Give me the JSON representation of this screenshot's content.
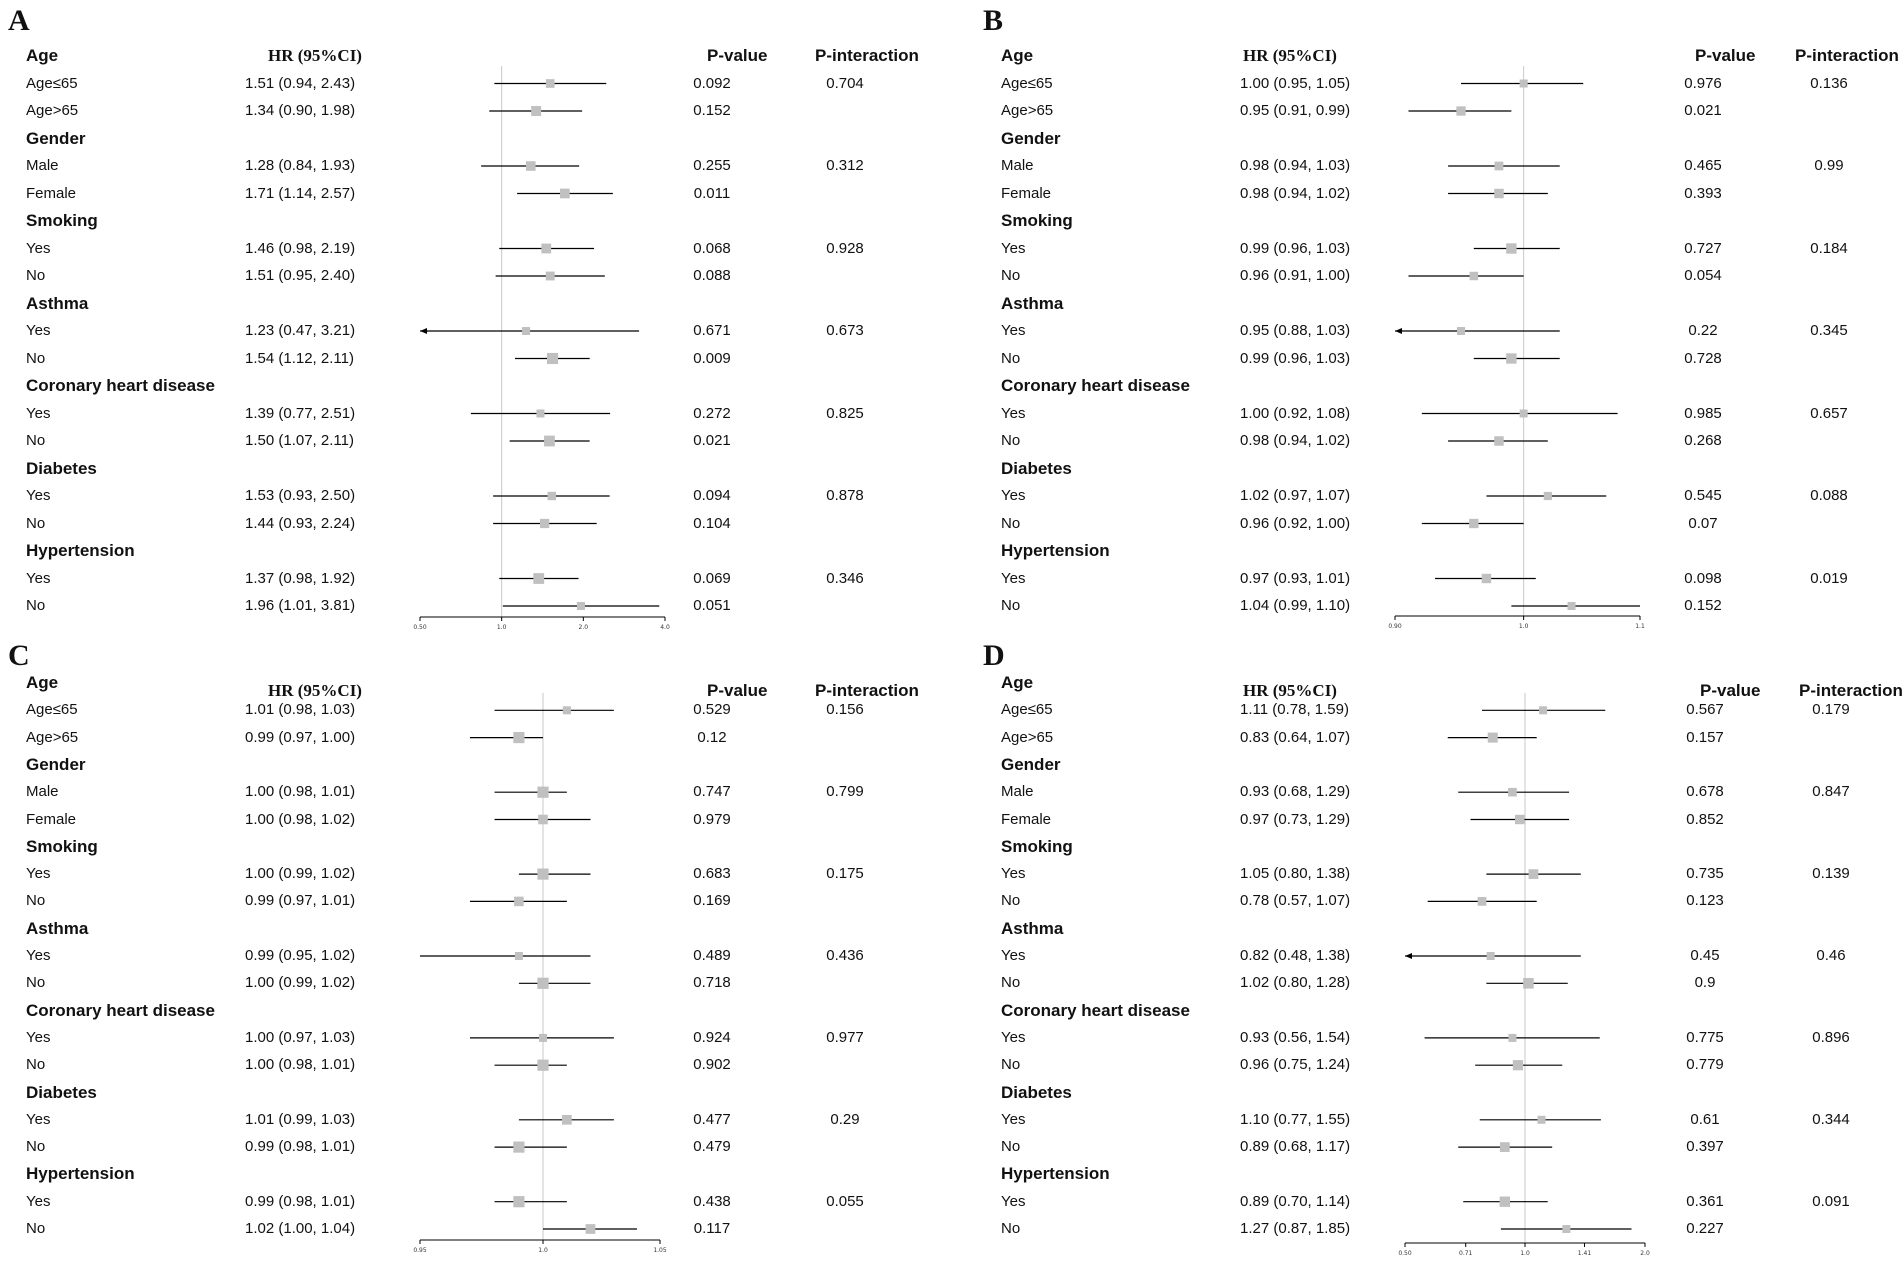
{
  "colors": {
    "marker": "#c0c0c0",
    "line": "#000000",
    "refline": "#c8c8c8"
  },
  "headers": {
    "hr": "HR (95%CI)",
    "p_value": "P-value",
    "p_interaction": "P-interaction"
  },
  "chart_data": [
    {
      "type": "forest",
      "panel": "A",
      "label": "A",
      "axis": {
        "scale": "log",
        "ticks": [
          0.5,
          1.0,
          2.0,
          4.0
        ],
        "tick_labels": [
          "0.50",
          "1.0",
          "2.0",
          "4.0"
        ],
        "reference": 1.0
      },
      "groups": [
        {
          "name": "Age",
          "rows": [
            {
              "label": "Age≤65",
              "hr_text": "1.51 (0.94, 2.43)",
              "hr": 1.51,
              "lo": 0.94,
              "hi": 2.43,
              "p": "0.092",
              "p_int": "0.704"
            },
            {
              "label": "Age>65",
              "hr_text": "1.34 (0.90, 1.98)",
              "hr": 1.34,
              "lo": 0.9,
              "hi": 1.98,
              "p": "0.152",
              "p_int": ""
            }
          ]
        },
        {
          "name": "Gender",
          "rows": [
            {
              "label": "Male",
              "hr_text": "1.28 (0.84, 1.93)",
              "hr": 1.28,
              "lo": 0.84,
              "hi": 1.93,
              "p": "0.255",
              "p_int": "0.312"
            },
            {
              "label": "Female",
              "hr_text": "1.71 (1.14, 2.57)",
              "hr": 1.71,
              "lo": 1.14,
              "hi": 2.57,
              "p": "0.011",
              "p_int": ""
            }
          ]
        },
        {
          "name": "Smoking",
          "rows": [
            {
              "label": "Yes",
              "hr_text": "1.46 (0.98, 2.19)",
              "hr": 1.46,
              "lo": 0.98,
              "hi": 2.19,
              "p": "0.068",
              "p_int": "0.928"
            },
            {
              "label": "No",
              "hr_text": "1.51 (0.95, 2.40)",
              "hr": 1.51,
              "lo": 0.95,
              "hi": 2.4,
              "p": "0.088",
              "p_int": ""
            }
          ]
        },
        {
          "name": "Asthma",
          "rows": [
            {
              "label": "Yes",
              "hr_text": "1.23 (0.47, 3.21)",
              "hr": 1.23,
              "lo": 0.47,
              "hi": 3.21,
              "p": "0.671",
              "p_int": "0.673"
            },
            {
              "label": "No",
              "hr_text": "1.54 (1.12, 2.11)",
              "hr": 1.54,
              "lo": 1.12,
              "hi": 2.11,
              "p": "0.009",
              "p_int": ""
            }
          ]
        },
        {
          "name": "Coronary heart disease",
          "rows": [
            {
              "label": "Yes",
              "hr_text": "1.39 (0.77, 2.51)",
              "hr": 1.39,
              "lo": 0.77,
              "hi": 2.51,
              "p": "0.272",
              "p_int": "0.825"
            },
            {
              "label": "No",
              "hr_text": "1.50 (1.07, 2.11)",
              "hr": 1.5,
              "lo": 1.07,
              "hi": 2.11,
              "p": "0.021",
              "p_int": ""
            }
          ]
        },
        {
          "name": "Diabetes",
          "rows": [
            {
              "label": "Yes",
              "hr_text": "1.53 (0.93, 2.50)",
              "hr": 1.53,
              "lo": 0.93,
              "hi": 2.5,
              "p": "0.094",
              "p_int": "0.878"
            },
            {
              "label": "No",
              "hr_text": "1.44 (0.93, 2.24)",
              "hr": 1.44,
              "lo": 0.93,
              "hi": 2.24,
              "p": "0.104",
              "p_int": ""
            }
          ]
        },
        {
          "name": "Hypertension",
          "rows": [
            {
              "label": "Yes",
              "hr_text": "1.37 (0.98, 1.92)",
              "hr": 1.37,
              "lo": 0.98,
              "hi": 1.92,
              "p": "0.069",
              "p_int": "0.346"
            },
            {
              "label": "No",
              "hr_text": "1.96 (1.01, 3.81)",
              "hr": 1.96,
              "lo": 1.01,
              "hi": 3.81,
              "p": "0.051",
              "p_int": ""
            }
          ]
        }
      ]
    },
    {
      "type": "forest",
      "panel": "B",
      "label": "B",
      "axis": {
        "scale": "log",
        "ticks": [
          0.9,
          1.0,
          1.1
        ],
        "tick_labels": [
          "0.90",
          "1.0",
          "1.1"
        ],
        "reference": 1.0
      },
      "groups": [
        {
          "name": "Age",
          "rows": [
            {
              "label": "Age≤65",
              "hr_text": "1.00 (0.95, 1.05)",
              "hr": 1.0,
              "lo": 0.95,
              "hi": 1.05,
              "p": "0.976",
              "p_int": "0.136"
            },
            {
              "label": "Age>65",
              "hr_text": "0.95 (0.91, 0.99)",
              "hr": 0.95,
              "lo": 0.91,
              "hi": 0.99,
              "p": "0.021",
              "p_int": ""
            }
          ]
        },
        {
          "name": "Gender",
          "rows": [
            {
              "label": "Male",
              "hr_text": "0.98 (0.94, 1.03)",
              "hr": 0.98,
              "lo": 0.94,
              "hi": 1.03,
              "p": "0.465",
              "p_int": "0.99"
            },
            {
              "label": "Female",
              "hr_text": "0.98 (0.94, 1.02)",
              "hr": 0.98,
              "lo": 0.94,
              "hi": 1.02,
              "p": "0.393",
              "p_int": ""
            }
          ]
        },
        {
          "name": "Smoking",
          "rows": [
            {
              "label": "Yes",
              "hr_text": "0.99 (0.96, 1.03)",
              "hr": 0.99,
              "lo": 0.96,
              "hi": 1.03,
              "p": "0.727",
              "p_int": "0.184"
            },
            {
              "label": "No",
              "hr_text": "0.96 (0.91, 1.00)",
              "hr": 0.96,
              "lo": 0.91,
              "hi": 1.0,
              "p": "0.054",
              "p_int": ""
            }
          ]
        },
        {
          "name": "Asthma",
          "rows": [
            {
              "label": "Yes",
              "hr_text": "0.95 (0.88, 1.03)",
              "hr": 0.95,
              "lo": 0.88,
              "hi": 1.03,
              "p": "0.22",
              "p_int": "0.345",
              "arrow_left": true
            },
            {
              "label": "No",
              "hr_text": "0.99 (0.96, 1.03)",
              "hr": 0.99,
              "lo": 0.96,
              "hi": 1.03,
              "p": "0.728",
              "p_int": ""
            }
          ]
        },
        {
          "name": "Coronary heart disease",
          "rows": [
            {
              "label": "Yes",
              "hr_text": "1.00 (0.92, 1.08)",
              "hr": 1.0,
              "lo": 0.92,
              "hi": 1.08,
              "p": "0.985",
              "p_int": "0.657"
            },
            {
              "label": "No",
              "hr_text": "0.98 (0.94, 1.02)",
              "hr": 0.98,
              "lo": 0.94,
              "hi": 1.02,
              "p": "0.268",
              "p_int": ""
            }
          ]
        },
        {
          "name": "Diabetes",
          "rows": [
            {
              "label": "Yes",
              "hr_text": "1.02 (0.97, 1.07)",
              "hr": 1.02,
              "lo": 0.97,
              "hi": 1.07,
              "p": "0.545",
              "p_int": "0.088"
            },
            {
              "label": "No",
              "hr_text": "0.96 (0.92, 1.00)",
              "hr": 0.96,
              "lo": 0.92,
              "hi": 1.0,
              "p": "0.07",
              "p_int": ""
            }
          ]
        },
        {
          "name": "Hypertension",
          "rows": [
            {
              "label": "Yes",
              "hr_text": "0.97 (0.93, 1.01)",
              "hr": 0.97,
              "lo": 0.93,
              "hi": 1.01,
              "p": "0.098",
              "p_int": "0.019"
            },
            {
              "label": "No",
              "hr_text": "1.04 (0.99, 1.10)",
              "hr": 1.04,
              "lo": 0.99,
              "hi": 1.1,
              "p": "0.152",
              "p_int": ""
            }
          ]
        }
      ]
    },
    {
      "type": "forest",
      "panel": "C",
      "label": "C",
      "axis": {
        "scale": "log",
        "ticks": [
          0.95,
          1.0,
          1.05
        ],
        "tick_labels": [
          "0.95",
          "1.0",
          "1.05"
        ],
        "reference": 1.0
      },
      "groups": [
        {
          "name": "Age",
          "rows": [
            {
              "label": "Age≤65",
              "hr_text": "1.01 (0.98, 1.03)",
              "hr": 1.01,
              "lo": 0.98,
              "hi": 1.03,
              "p": "0.529",
              "p_int": "0.156"
            },
            {
              "label": "Age>65",
              "hr_text": "0.99 (0.97, 1.00)",
              "hr": 0.99,
              "lo": 0.97,
              "hi": 1.0,
              "p": "0.12",
              "p_int": ""
            }
          ]
        },
        {
          "name": "Gender",
          "rows": [
            {
              "label": "Male",
              "hr_text": "1.00 (0.98, 1.01)",
              "hr": 1.0,
              "lo": 0.98,
              "hi": 1.01,
              "p": "0.747",
              "p_int": "0.799"
            },
            {
              "label": "Female",
              "hr_text": "1.00 (0.98, 1.02)",
              "hr": 1.0,
              "lo": 0.98,
              "hi": 1.02,
              "p": "0.979",
              "p_int": ""
            }
          ]
        },
        {
          "name": "Smoking",
          "rows": [
            {
              "label": "Yes",
              "hr_text": "1.00 (0.99, 1.02)",
              "hr": 1.0,
              "lo": 0.99,
              "hi": 1.02,
              "p": "0.683",
              "p_int": "0.175"
            },
            {
              "label": "No",
              "hr_text": "0.99 (0.97, 1.01)",
              "hr": 0.99,
              "lo": 0.97,
              "hi": 1.01,
              "p": "0.169",
              "p_int": ""
            }
          ]
        },
        {
          "name": "Asthma",
          "rows": [
            {
              "label": "Yes",
              "hr_text": "0.99 (0.95, 1.02)",
              "hr": 0.99,
              "lo": 0.95,
              "hi": 1.02,
              "p": "0.489",
              "p_int": "0.436"
            },
            {
              "label": "No",
              "hr_text": "1.00 (0.99, 1.02)",
              "hr": 1.0,
              "lo": 0.99,
              "hi": 1.02,
              "p": "0.718",
              "p_int": ""
            }
          ]
        },
        {
          "name": "Coronary heart disease",
          "rows": [
            {
              "label": "Yes",
              "hr_text": "1.00 (0.97, 1.03)",
              "hr": 1.0,
              "lo": 0.97,
              "hi": 1.03,
              "p": "0.924",
              "p_int": "0.977"
            },
            {
              "label": "No",
              "hr_text": "1.00 (0.98, 1.01)",
              "hr": 1.0,
              "lo": 0.98,
              "hi": 1.01,
              "p": "0.902",
              "p_int": ""
            }
          ]
        },
        {
          "name": "Diabetes",
          "rows": [
            {
              "label": "Yes",
              "hr_text": "1.01 (0.99, 1.03)",
              "hr": 1.01,
              "lo": 0.99,
              "hi": 1.03,
              "p": "0.477",
              "p_int": "0.29"
            },
            {
              "label": "No",
              "hr_text": "0.99 (0.98, 1.01)",
              "hr": 0.99,
              "lo": 0.98,
              "hi": 1.01,
              "p": "0.479",
              "p_int": ""
            }
          ]
        },
        {
          "name": "Hypertension",
          "rows": [
            {
              "label": "Yes",
              "hr_text": "0.99 (0.98, 1.01)",
              "hr": 0.99,
              "lo": 0.98,
              "hi": 1.01,
              "p": "0.438",
              "p_int": "0.055"
            },
            {
              "label": "No",
              "hr_text": "1.02 (1.00, 1.04)",
              "hr": 1.02,
              "lo": 1.0,
              "hi": 1.04,
              "p": "0.117",
              "p_int": ""
            }
          ]
        }
      ]
    },
    {
      "type": "forest",
      "panel": "D",
      "label": "D",
      "axis": {
        "scale": "log",
        "ticks": [
          0.5,
          0.71,
          1.0,
          1.41,
          2.0
        ],
        "tick_labels": [
          "0.50",
          "0.71",
          "1.0",
          "1.41",
          "2.0"
        ],
        "reference": 1.0
      },
      "groups": [
        {
          "name": "Age",
          "rows": [
            {
              "label": "Age≤65",
              "hr_text": "1.11 (0.78, 1.59)",
              "hr": 1.11,
              "lo": 0.78,
              "hi": 1.59,
              "p": "0.567",
              "p_int": "0.179"
            },
            {
              "label": "Age>65",
              "hr_text": "0.83 (0.64, 1.07)",
              "hr": 0.83,
              "lo": 0.64,
              "hi": 1.07,
              "p": "0.157",
              "p_int": ""
            }
          ]
        },
        {
          "name": "Gender",
          "rows": [
            {
              "label": "Male",
              "hr_text": "0.93 (0.68, 1.29)",
              "hr": 0.93,
              "lo": 0.68,
              "hi": 1.29,
              "p": "0.678",
              "p_int": "0.847"
            },
            {
              "label": "Female",
              "hr_text": "0.97 (0.73, 1.29)",
              "hr": 0.97,
              "lo": 0.73,
              "hi": 1.29,
              "p": "0.852",
              "p_int": ""
            }
          ]
        },
        {
          "name": "Smoking",
          "rows": [
            {
              "label": "Yes",
              "hr_text": "1.05 (0.80, 1.38)",
              "hr": 1.05,
              "lo": 0.8,
              "hi": 1.38,
              "p": "0.735",
              "p_int": "0.139"
            },
            {
              "label": "No",
              "hr_text": "0.78 (0.57, 1.07)",
              "hr": 0.78,
              "lo": 0.57,
              "hi": 1.07,
              "p": "0.123",
              "p_int": ""
            }
          ]
        },
        {
          "name": "Asthma",
          "rows": [
            {
              "label": "Yes",
              "hr_text": "0.82 (0.48, 1.38)",
              "hr": 0.82,
              "lo": 0.48,
              "hi": 1.38,
              "p": "0.45",
              "p_int": "0.46"
            },
            {
              "label": "No",
              "hr_text": "1.02 (0.80, 1.28)",
              "hr": 1.02,
              "lo": 0.8,
              "hi": 1.28,
              "p": "0.9",
              "p_int": ""
            }
          ]
        },
        {
          "name": "Coronary heart disease",
          "rows": [
            {
              "label": "Yes",
              "hr_text": "0.93 (0.56, 1.54)",
              "hr": 0.93,
              "lo": 0.56,
              "hi": 1.54,
              "p": "0.775",
              "p_int": "0.896"
            },
            {
              "label": "No",
              "hr_text": "0.96 (0.75, 1.24)",
              "hr": 0.96,
              "lo": 0.75,
              "hi": 1.24,
              "p": "0.779",
              "p_int": ""
            }
          ]
        },
        {
          "name": "Diabetes",
          "rows": [
            {
              "label": "Yes",
              "hr_text": "1.10 (0.77, 1.55)",
              "hr": 1.1,
              "lo": 0.77,
              "hi": 1.55,
              "p": "0.61",
              "p_int": "0.344"
            },
            {
              "label": "No",
              "hr_text": "0.89 (0.68, 1.17)",
              "hr": 0.89,
              "lo": 0.68,
              "hi": 1.17,
              "p": "0.397",
              "p_int": ""
            }
          ]
        },
        {
          "name": "Hypertension",
          "rows": [
            {
              "label": "Yes",
              "hr_text": "0.89 (0.70, 1.14)",
              "hr": 0.89,
              "lo": 0.7,
              "hi": 1.14,
              "p": "0.361",
              "p_int": "0.091"
            },
            {
              "label": "No",
              "hr_text": "1.27 (0.87, 1.85)",
              "hr": 1.27,
              "lo": 0.87,
              "hi": 1.85,
              "p": "0.227",
              "p_int": ""
            }
          ]
        }
      ]
    }
  ]
}
